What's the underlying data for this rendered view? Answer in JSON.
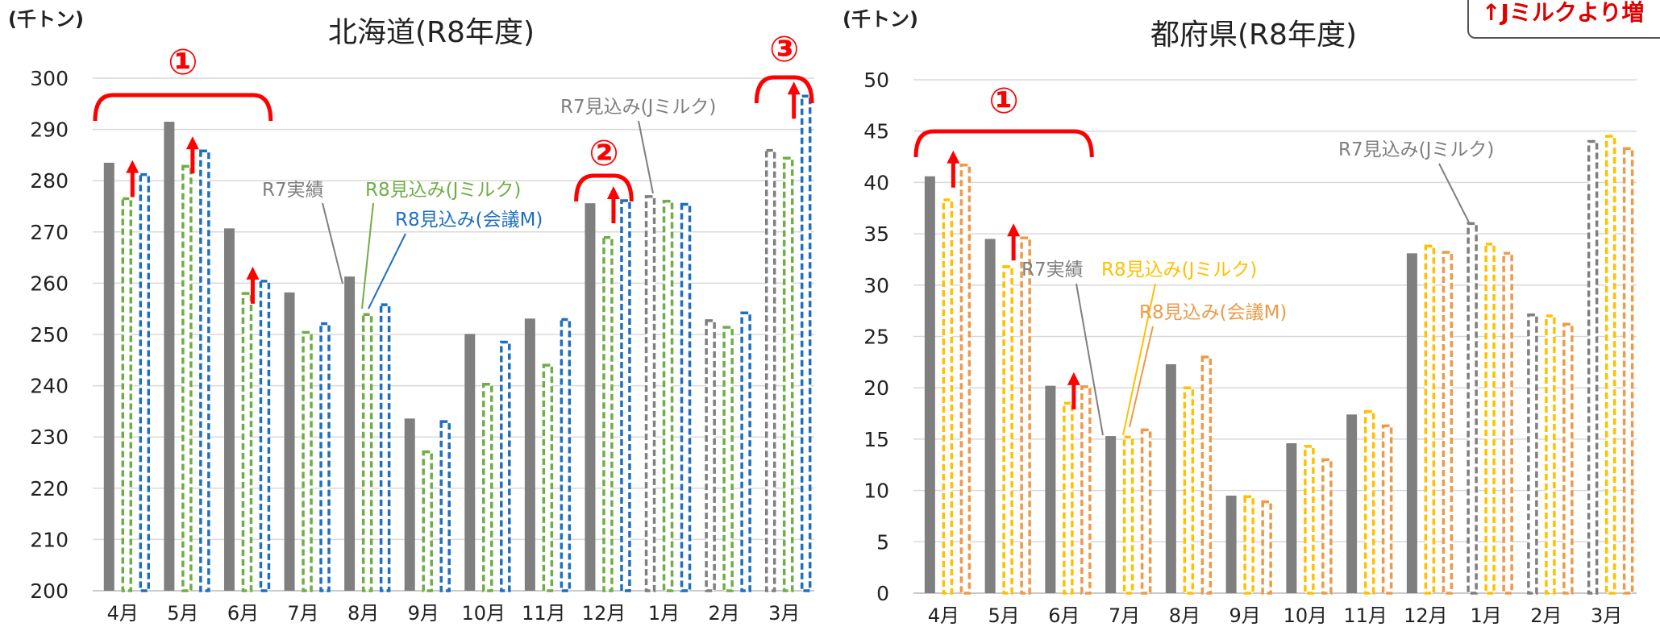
{
  "corner_note": "↑Jミルクより増",
  "chart_data": [
    {
      "type": "bar",
      "title": "北海道(R8年度)",
      "ylabel": "(千トン)",
      "categories": [
        "4月",
        "5月",
        "6月",
        "7月",
        "8月",
        "9月",
        "10月",
        "11月",
        "12月",
        "1月",
        "2月",
        "3月"
      ],
      "ylim": [
        200,
        300
      ],
      "yticks": [
        200,
        210,
        220,
        230,
        240,
        250,
        260,
        270,
        280,
        290,
        300
      ],
      "grid": true,
      "series": [
        {
          "name": "R7実績",
          "values": [
            283.5,
            291.5,
            270.7,
            258.2,
            261.3,
            233.6,
            250.1,
            253.1,
            275.6,
            null,
            null,
            null
          ],
          "color": "#7f7f7f",
          "style": "solid"
        },
        {
          "name": "R7見込み(Jミルク)",
          "values": [
            null,
            null,
            null,
            null,
            null,
            null,
            null,
            null,
            null,
            276.9,
            252.7,
            285.9
          ],
          "color": "#7f7f7f",
          "style": "dashed"
        },
        {
          "name": "R8見込み(Jミルク)",
          "values": [
            276.5,
            282.8,
            258.0,
            250.4,
            253.9,
            227.1,
            240.3,
            244.0,
            268.9,
            276.0,
            251.4,
            284.4
          ],
          "color": "#70ad47",
          "style": "dashed"
        },
        {
          "name": "R8見込み(会議M)",
          "values": [
            281.2,
            285.8,
            260.4,
            252.1,
            255.8,
            233.0,
            248.5,
            252.9,
            276.1,
            275.4,
            254.2,
            296.5
          ],
          "color": "#1f6fbf",
          "style": "dashed"
        }
      ],
      "annotations": [
        {
          "text": "R7実績",
          "color": "#7f7f7f"
        },
        {
          "text": "R8見込み(Jミルク)",
          "color": "#70ad47"
        },
        {
          "text": "R8見込み(会議M)",
          "color": "#1f6fbf"
        },
        {
          "text": "R7見込み(Jミルク)",
          "color": "#7f7f7f"
        }
      ],
      "brackets": [
        {
          "label": "①",
          "from": 0,
          "to": 2
        },
        {
          "label": "②",
          "from": 8,
          "to": 8
        },
        {
          "label": "③",
          "from": 11,
          "to": 11
        }
      ],
      "up_arrows": [
        0,
        1,
        2,
        8,
        11
      ]
    },
    {
      "type": "bar",
      "title": "都府県(R8年度)",
      "ylabel": "(千トン)",
      "categories": [
        "4月",
        "5月",
        "6月",
        "7月",
        "8月",
        "9月",
        "10月",
        "11月",
        "12月",
        "1月",
        "2月",
        "3月"
      ],
      "ylim": [
        0,
        50
      ],
      "yticks": [
        0,
        5,
        10,
        15,
        20,
        25,
        30,
        35,
        40,
        45,
        50
      ],
      "grid": true,
      "series": [
        {
          "name": "R7実績",
          "values": [
            40.6,
            34.5,
            20.2,
            15.3,
            22.3,
            9.5,
            14.6,
            17.4,
            33.1,
            null,
            null,
            null
          ],
          "color": "#7f7f7f",
          "style": "solid"
        },
        {
          "name": "R7見込み(Jミルク)",
          "values": [
            null,
            null,
            null,
            null,
            null,
            null,
            null,
            null,
            null,
            36.0,
            27.1,
            44.0
          ],
          "color": "#7f7f7f",
          "style": "dashed"
        },
        {
          "name": "R8見込み(Jミルク)",
          "values": [
            38.3,
            31.8,
            18.5,
            15.2,
            20.0,
            9.4,
            14.3,
            17.7,
            33.8,
            34.0,
            27.0,
            44.5
          ],
          "color": "#ffc000",
          "style": "dashed"
        },
        {
          "name": "R8見込み(会議M)",
          "values": [
            41.7,
            34.6,
            20.1,
            15.9,
            23.0,
            8.9,
            13.0,
            16.3,
            33.2,
            33.1,
            26.2,
            43.3
          ],
          "color": "#ed9a4a",
          "style": "dashed"
        }
      ],
      "annotations": [
        {
          "text": "R7見込み(Jミルク)",
          "color": "#7f7f7f"
        },
        {
          "text": "R7実績",
          "color": "#7f7f7f"
        },
        {
          "text": "R8見込み(Jミルク)",
          "color": "#ffc000"
        },
        {
          "text": "R8見込み(会議M)",
          "color": "#ed9a4a"
        }
      ],
      "brackets": [
        {
          "label": "①",
          "from": 0,
          "to": 2
        }
      ],
      "up_arrows": [
        0,
        1,
        2
      ]
    }
  ]
}
